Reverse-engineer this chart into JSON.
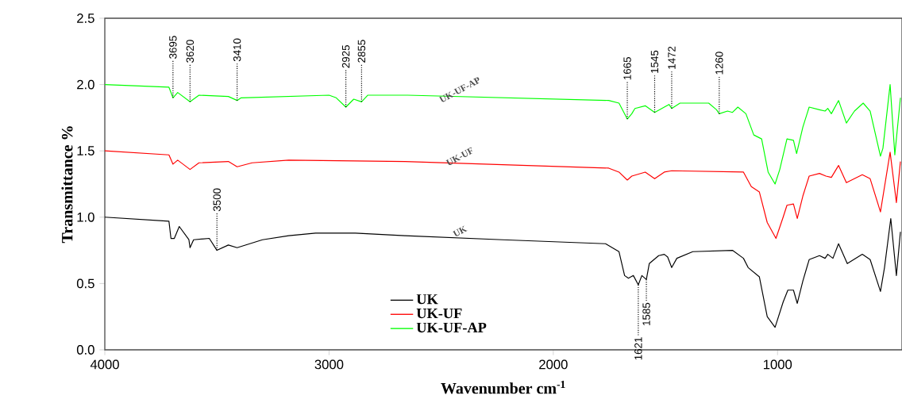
{
  "chart_data": {
    "type": "line",
    "xlabel": "Wavenumber cm$^{-1}$",
    "ylabel": "Transmittance %",
    "xlim": [
      4000,
      445
    ],
    "ylim": [
      0,
      2.5
    ],
    "xticks": [
      4000,
      3000,
      2000,
      1000
    ],
    "yticks": [
      {
        "value": 0,
        "label": "0.0"
      },
      0.5,
      {
        "value": 1,
        "label": "1.0"
      },
      1.5,
      {
        "value": 2,
        "label": "2.0"
      },
      2.5
    ],
    "grid": false,
    "legend": "bottom",
    "marker": "none",
    "line_style": "solid",
    "series": [
      {
        "name": "UK",
        "color": "#000000",
        "x": [
          4000,
          3714,
          3705,
          3690,
          3668,
          3625,
          3620,
          3604,
          3534,
          3500,
          3449,
          3410,
          3297,
          3180,
          3060,
          2883,
          2661,
          2226,
          1767,
          1707,
          1682,
          1665,
          1643,
          1621,
          1605,
          1585,
          1572,
          1530,
          1505,
          1490,
          1472,
          1449,
          1378,
          1201,
          1152,
          1131,
          1081,
          1046,
          1011,
          975,
          954,
          929,
          912,
          887,
          859,
          813,
          788,
          776,
          753,
          728,
          689,
          622,
          587,
          541,
          523,
          495,
          470,
          452
        ],
        "values": [
          1.0,
          0.97,
          0.84,
          0.84,
          0.93,
          0.83,
          0.77,
          0.83,
          0.84,
          0.75,
          0.79,
          0.77,
          0.83,
          0.86,
          0.88,
          0.88,
          0.86,
          0.83,
          0.8,
          0.74,
          0.56,
          0.54,
          0.56,
          0.49,
          0.56,
          0.53,
          0.65,
          0.71,
          0.72,
          0.7,
          0.62,
          0.69,
          0.74,
          0.75,
          0.69,
          0.62,
          0.55,
          0.25,
          0.17,
          0.36,
          0.45,
          0.45,
          0.35,
          0.52,
          0.68,
          0.71,
          0.69,
          0.72,
          0.69,
          0.8,
          0.65,
          0.72,
          0.68,
          0.44,
          0.62,
          0.99,
          0.56,
          0.89
        ]
      },
      {
        "name": "UK-UF",
        "color": "#ff0000",
        "x": [
          4000,
          3714,
          3696,
          3675,
          3620,
          3580,
          3449,
          3410,
          3343,
          3180,
          2661,
          1753,
          1707,
          1670,
          1650,
          1590,
          1548,
          1505,
          1472,
          1152,
          1117,
          1081,
          1046,
          1007,
          975,
          958,
          929,
          912,
          887,
          859,
          813,
          784,
          760,
          728,
          693,
          622,
          587,
          541,
          498,
          470,
          452
        ],
        "values": [
          1.5,
          1.47,
          1.4,
          1.43,
          1.36,
          1.41,
          1.42,
          1.38,
          1.41,
          1.43,
          1.42,
          1.37,
          1.34,
          1.28,
          1.31,
          1.34,
          1.29,
          1.34,
          1.35,
          1.34,
          1.23,
          1.19,
          0.96,
          0.84,
          1.0,
          1.09,
          1.1,
          0.99,
          1.16,
          1.31,
          1.33,
          1.31,
          1.3,
          1.39,
          1.26,
          1.32,
          1.29,
          1.04,
          1.49,
          1.11,
          1.42
        ]
      },
      {
        "name": "UK-UF-AP",
        "color": "#00ff00",
        "x": [
          4000,
          3714,
          3696,
          3675,
          3620,
          3580,
          3449,
          3410,
          3392,
          3000,
          2968,
          2925,
          2890,
          2855,
          2827,
          2650,
          1753,
          1707,
          1670,
          1650,
          1636,
          1590,
          1548,
          1505,
          1484,
          1472,
          1435,
          1307,
          1272,
          1260,
          1223,
          1201,
          1177,
          1141,
          1106,
          1071,
          1042,
          1011,
          990,
          958,
          929,
          915,
          887,
          859,
          813,
          788,
          776,
          760,
          728,
          693,
          657,
          618,
          587,
          541,
          530,
          498,
          477,
          452
        ],
        "values": [
          2.0,
          1.98,
          1.9,
          1.94,
          1.87,
          1.92,
          1.91,
          1.88,
          1.9,
          1.92,
          1.9,
          1.83,
          1.89,
          1.87,
          1.92,
          1.92,
          1.88,
          1.86,
          1.74,
          1.78,
          1.82,
          1.84,
          1.79,
          1.83,
          1.85,
          1.82,
          1.86,
          1.86,
          1.81,
          1.78,
          1.8,
          1.79,
          1.83,
          1.78,
          1.62,
          1.59,
          1.34,
          1.25,
          1.36,
          1.59,
          1.58,
          1.48,
          1.68,
          1.83,
          1.81,
          1.8,
          1.82,
          1.78,
          1.88,
          1.71,
          1.8,
          1.86,
          1.8,
          1.46,
          1.52,
          2.0,
          1.47,
          1.9
        ]
      }
    ],
    "annotations": [
      {
        "text": "3695",
        "x": 3696,
        "y": 1.9
      },
      {
        "text": "3620",
        "x": 3620,
        "y": 1.87
      },
      {
        "text": "3410",
        "x": 3410,
        "y": 1.88
      },
      {
        "text": "2925",
        "x": 2925,
        "y": 1.83
      },
      {
        "text": "2855",
        "x": 2855,
        "y": 1.87
      },
      {
        "text": "1665",
        "x": 1670,
        "y": 1.74
      },
      {
        "text": "1545",
        "x": 1548,
        "y": 1.79
      },
      {
        "text": "1472",
        "x": 1472,
        "y": 1.82
      },
      {
        "text": "1260",
        "x": 1260,
        "y": 1.78
      },
      {
        "text": "3500",
        "x": 3500,
        "y": 0.75
      },
      {
        "text": "1621",
        "x": 1621,
        "y": 0.49
      },
      {
        "text": "1585",
        "x": 1585,
        "y": 0.53
      }
    ]
  }
}
